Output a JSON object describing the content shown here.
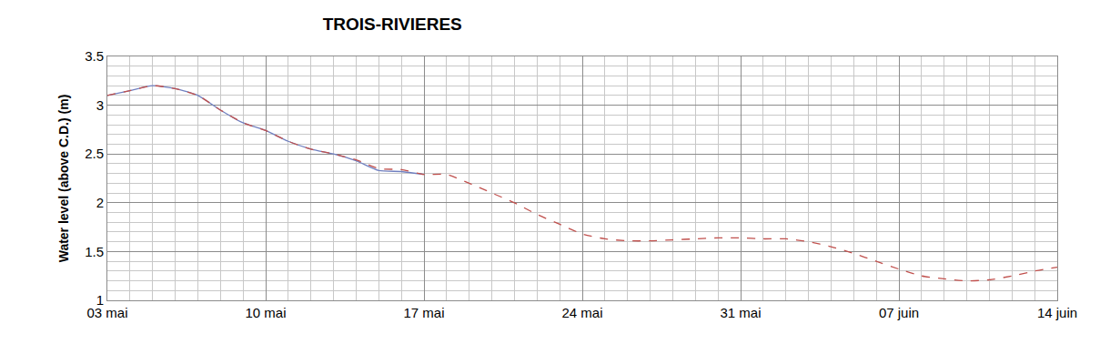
{
  "chart_data": {
    "type": "line",
    "title": "TROIS-RIVIERES",
    "y_label": "Water level (above C.D.) (m)",
    "categories": [
      "03 mai",
      null,
      null,
      null,
      null,
      null,
      null,
      "10 mai",
      null,
      null,
      null,
      null,
      null,
      null,
      "17 mai",
      null,
      null,
      null,
      null,
      null,
      null,
      "24 mai",
      null,
      null,
      null,
      null,
      null,
      null,
      "31 mai",
      null,
      null,
      null,
      null,
      null,
      null,
      "07 juin",
      null,
      null,
      null,
      null,
      null,
      null,
      "14 juin"
    ],
    "series": [
      {
        "color": "#7080c0",
        "line_style": "solid",
        "values": [
          3.1,
          3.15,
          3.2,
          3.17,
          3.1,
          2.95,
          2.82,
          2.74,
          2.63,
          2.55,
          2.5,
          2.43,
          2.33,
          2.32,
          2.29,
          null,
          null,
          null,
          null,
          null,
          null,
          null,
          null,
          null,
          null,
          null,
          null,
          null,
          null,
          null,
          null,
          null,
          null,
          null,
          null,
          null,
          null,
          null,
          null,
          null,
          null,
          null,
          null
        ]
      },
      {
        "color": "#c0504d",
        "line_style": "dashed",
        "values": [
          3.1,
          3.15,
          3.2,
          3.17,
          3.1,
          2.95,
          2.82,
          2.74,
          2.63,
          2.55,
          2.5,
          2.44,
          2.35,
          2.34,
          2.29,
          2.29,
          2.2,
          2.1,
          2.0,
          1.88,
          1.78,
          1.68,
          1.63,
          1.61,
          1.61,
          1.62,
          1.63,
          1.64,
          1.64,
          1.63,
          1.63,
          1.6,
          1.55,
          1.48,
          1.4,
          1.32,
          1.25,
          1.22,
          1.2,
          1.21,
          1.25,
          1.3,
          1.34
        ]
      }
    ],
    "ylim": [
      1,
      3.5
    ],
    "yticks": [
      1,
      1.5,
      2,
      2.5,
      3,
      3.5
    ],
    "grid": true
  }
}
